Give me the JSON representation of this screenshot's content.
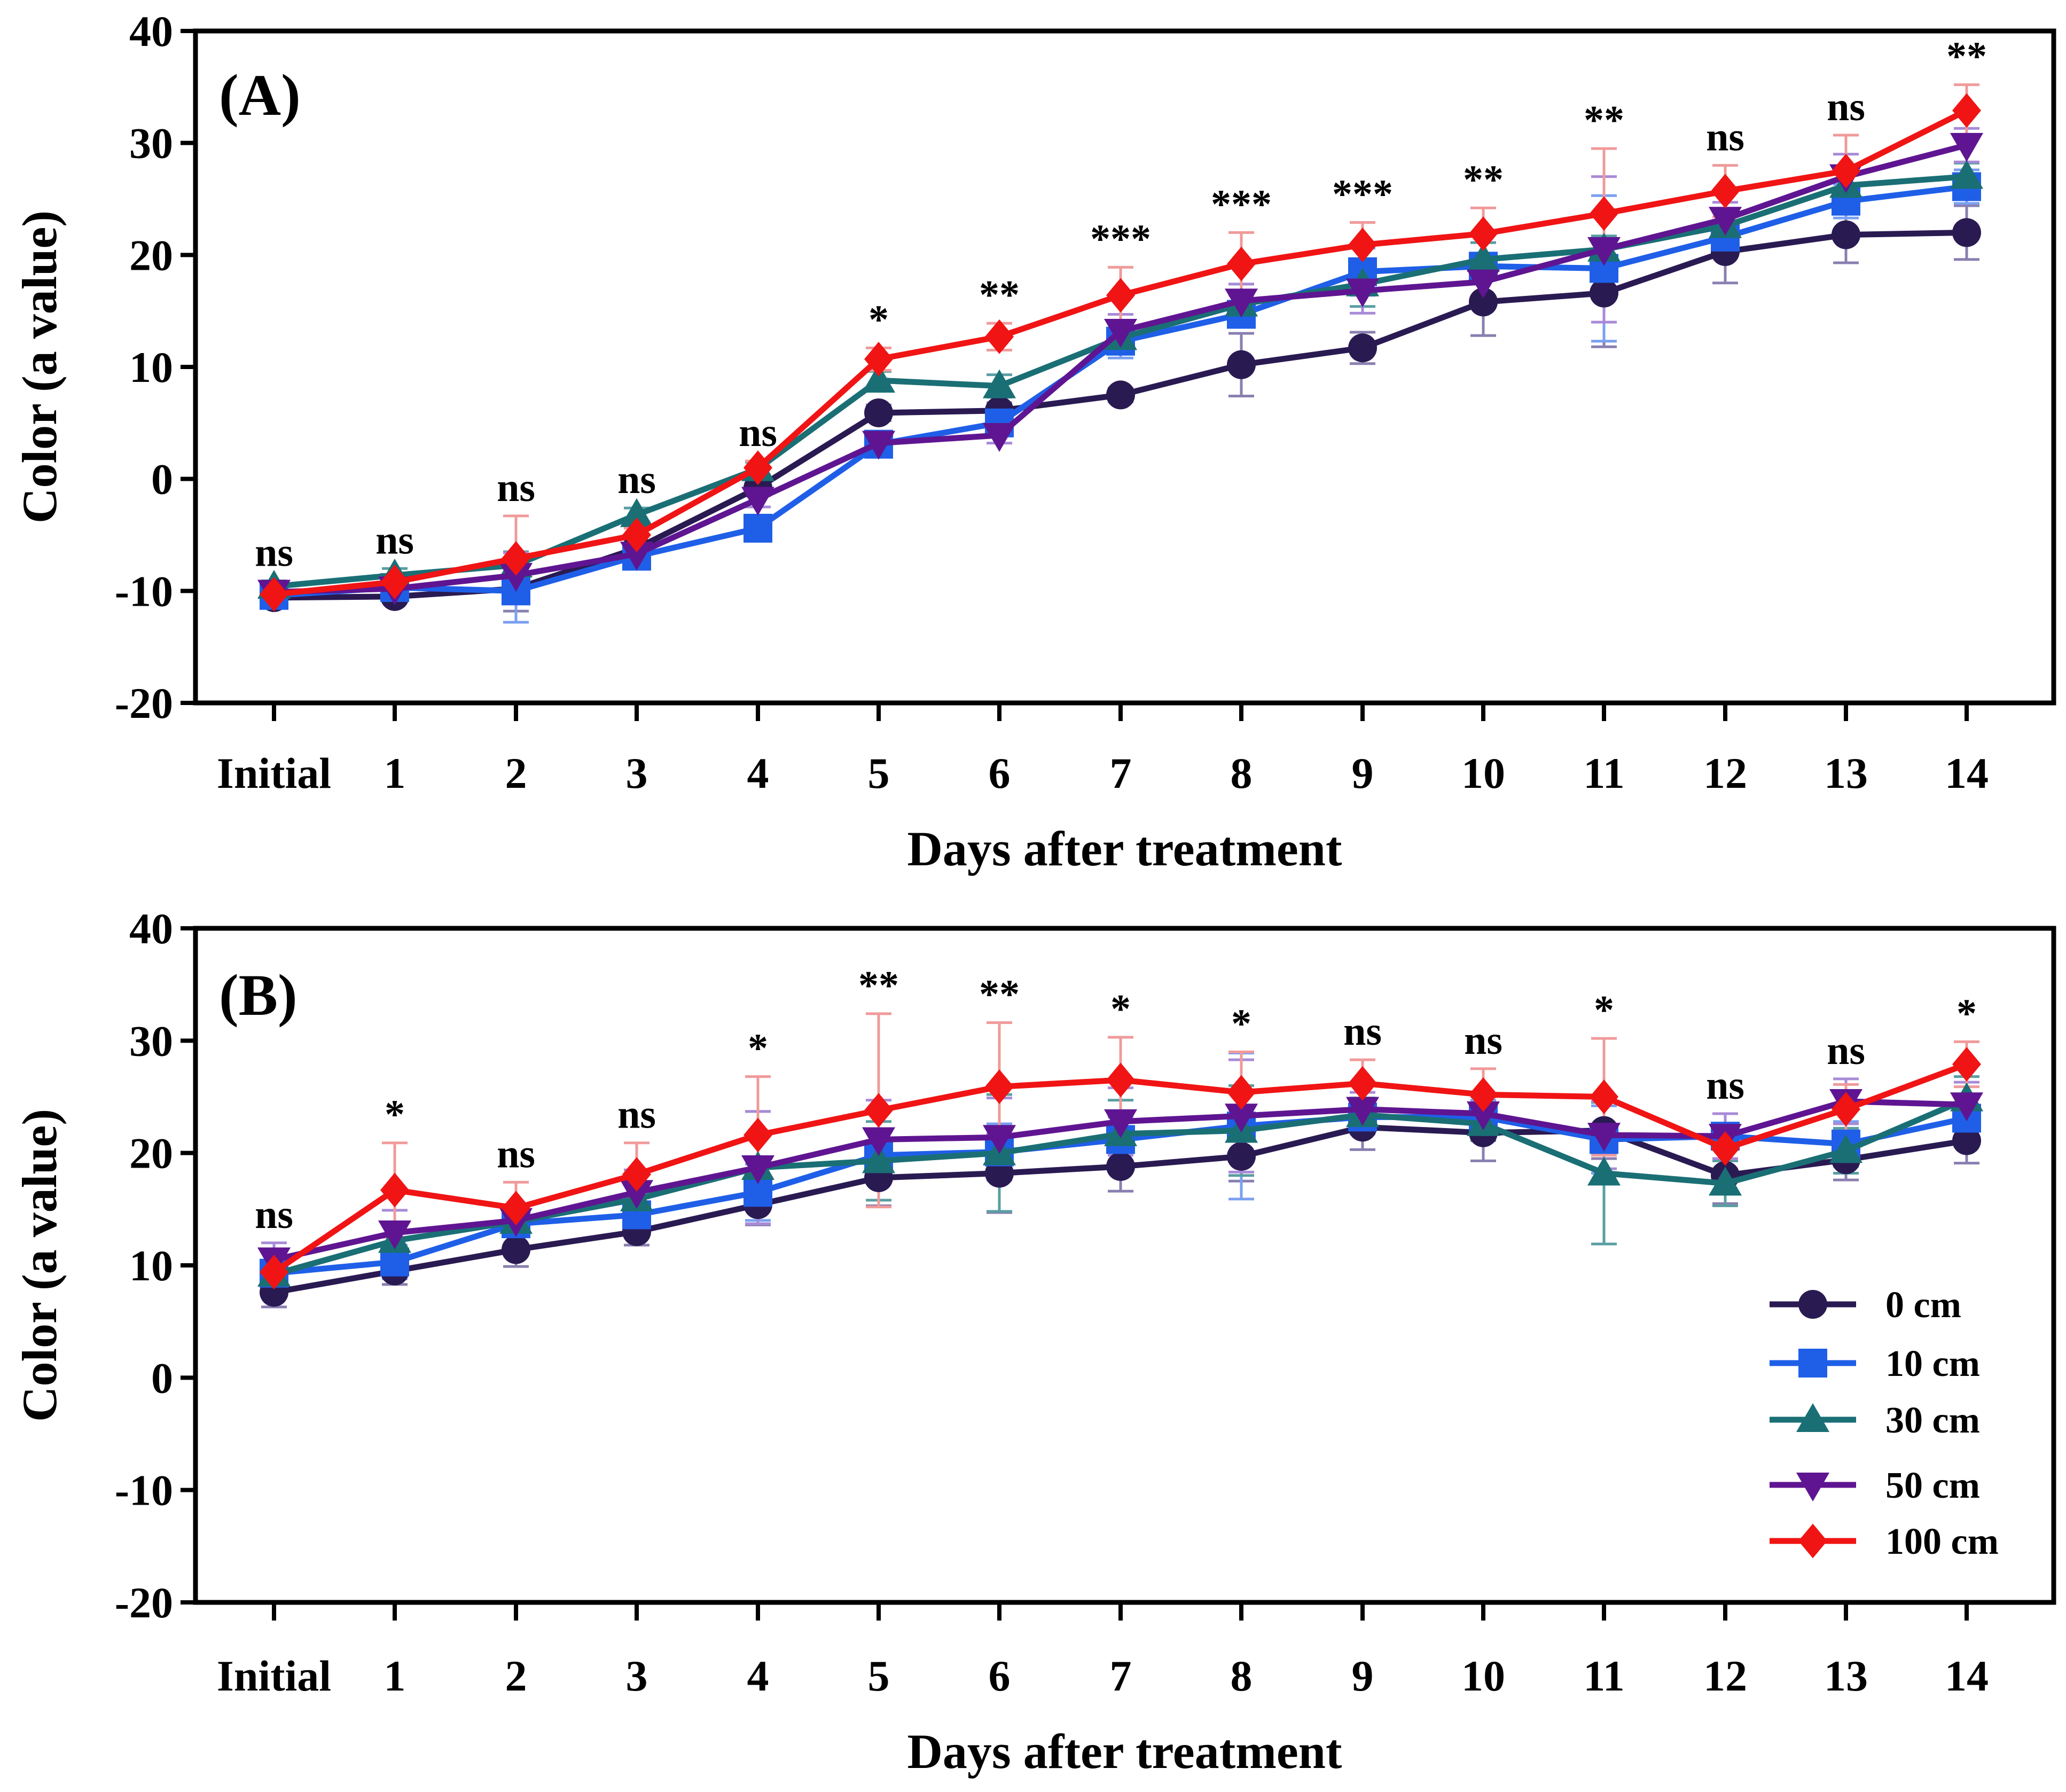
{
  "chart_data": [
    {
      "type": "line",
      "panel_label": "(A)",
      "xlabel": "Days after treatment",
      "ylabel": "Color (a value)",
      "ylim": [
        -20,
        40
      ],
      "yticks": [
        -20,
        -10,
        0,
        10,
        20,
        30,
        40
      ],
      "categories": [
        "Initial",
        "1",
        "2",
        "3",
        "4",
        "5",
        "6",
        "7",
        "8",
        "9",
        "10",
        "11",
        "12",
        "13",
        "14"
      ],
      "significance": [
        "ns",
        "ns",
        "ns",
        "ns",
        "ns",
        "*",
        "**",
        "***",
        "***",
        "***",
        "**",
        "**",
        "ns",
        "ns",
        "**"
      ],
      "series": [
        {
          "name": "0 cm",
          "values": [
            -10.6,
            -10.5,
            -9.8,
            -6.2,
            -0.8,
            5.9,
            6.1,
            7.5,
            10.2,
            11.7,
            15.8,
            16.6,
            20.3,
            21.8,
            22.0
          ],
          "errors": [
            0.5,
            0.5,
            2.0,
            0.6,
            0.7,
            0.7,
            0.7,
            0.6,
            2.8,
            1.4,
            3.0,
            4.8,
            2.8,
            2.5,
            2.4
          ]
        },
        {
          "name": "10 cm",
          "values": [
            -10.4,
            -9.7,
            -10.0,
            -6.9,
            -4.4,
            3.1,
            5.0,
            12.3,
            14.7,
            18.5,
            19.0,
            18.8,
            21.6,
            24.8,
            26.1
          ],
          "errors": [
            0.5,
            0.5,
            2.8,
            0.6,
            0.7,
            0.8,
            1.0,
            1.5,
            1.0,
            2.1,
            1.0,
            6.5,
            1.3,
            1.5,
            1.5
          ]
        },
        {
          "name": "30 cm",
          "values": [
            -9.6,
            -8.6,
            -7.7,
            -3.2,
            0.9,
            8.8,
            8.3,
            12.6,
            15.6,
            17.4,
            19.6,
            20.5,
            22.6,
            26.2,
            27.0
          ],
          "errors": [
            0.5,
            0.6,
            1.2,
            0.6,
            0.6,
            0.8,
            1.0,
            1.2,
            1.8,
            2.0,
            1.5,
            1.2,
            1.2,
            1.5,
            1.2
          ]
        },
        {
          "name": "50 cm",
          "values": [
            -10.1,
            -9.8,
            -8.6,
            -6.7,
            -1.8,
            3.2,
            3.9,
            13.2,
            15.9,
            16.8,
            17.6,
            20.5,
            23.2,
            27.0,
            29.8
          ],
          "errors": [
            0.5,
            0.5,
            2.0,
            0.8,
            0.7,
            0.7,
            0.7,
            1.5,
            1.5,
            2.0,
            1.8,
            6.5,
            1.5,
            2.0,
            1.5
          ]
        },
        {
          "name": "100 cm",
          "values": [
            -10.3,
            -9.2,
            -7.1,
            -5.0,
            1.0,
            10.7,
            12.7,
            16.4,
            19.2,
            20.9,
            21.9,
            23.7,
            25.7,
            27.5,
            32.9
          ],
          "errors": [
            0.5,
            0.5,
            3.8,
            0.6,
            0.6,
            1.0,
            1.2,
            2.5,
            2.8,
            2.0,
            2.3,
            5.8,
            2.3,
            3.2,
            2.3
          ]
        }
      ],
      "colors": {
        "0 cm": "#2a1a52",
        "10 cm": "#1f5fe8",
        "30 cm": "#1a6f75",
        "50 cm": "#5f1591",
        "100 cm": "#f01414"
      },
      "error_colors": {
        "0 cm": "#8a7fb0",
        "10 cm": "#7aa0f0",
        "30 cm": "#5a9ea2",
        "50 cm": "#a98ad8",
        "100 cm": "#f09a9a"
      }
    },
    {
      "type": "line",
      "panel_label": "(B)",
      "xlabel": "Days after treatment",
      "ylabel": "Color (a value)",
      "ylim": [
        -20,
        40
      ],
      "yticks": [
        -20,
        -10,
        0,
        10,
        20,
        30,
        40
      ],
      "categories": [
        "Initial",
        "1",
        "2",
        "3",
        "4",
        "5",
        "6",
        "7",
        "8",
        "9",
        "10",
        "11",
        "12",
        "13",
        "14"
      ],
      "significance": [
        "ns",
        "*",
        "ns",
        "ns",
        "*",
        "**",
        "**",
        "*",
        "*",
        "ns",
        "ns",
        "*",
        "ns",
        "ns",
        "*"
      ],
      "series": [
        {
          "name": "0 cm",
          "values": [
            7.6,
            9.5,
            11.4,
            13.0,
            15.4,
            17.8,
            18.2,
            18.8,
            19.7,
            22.3,
            21.8,
            22.0,
            18.0,
            19.4,
            21.1
          ],
          "errors": [
            1.3,
            1.2,
            1.5,
            1.2,
            1.8,
            2.5,
            3.5,
            2.2,
            2.2,
            2.0,
            2.5,
            2.5,
            2.5,
            1.8,
            2.0
          ]
        },
        {
          "name": "10 cm",
          "values": [
            9.3,
            10.3,
            13.7,
            14.5,
            16.5,
            19.8,
            20.1,
            21.2,
            22.4,
            23.2,
            23.2,
            21.2,
            21.5,
            20.8,
            23.1
          ],
          "errors": [
            1.0,
            1.5,
            1.0,
            1.5,
            2.5,
            4.0,
            2.5,
            2.0,
            6.5,
            1.5,
            1.5,
            3.0,
            2.0,
            2.0,
            2.0
          ]
        },
        {
          "name": "30 cm",
          "values": [
            9.2,
            12.2,
            13.9,
            15.9,
            18.7,
            19.3,
            20.0,
            21.7,
            22.0,
            23.4,
            22.6,
            18.2,
            17.3,
            20.2,
            24.8
          ],
          "errors": [
            1.0,
            1.5,
            1.0,
            1.5,
            5.0,
            3.5,
            5.2,
            3.0,
            4.0,
            1.5,
            1.5,
            6.3,
            2.0,
            2.0,
            2.0
          ]
        },
        {
          "name": "50 cm",
          "values": [
            10.5,
            12.9,
            14.0,
            16.5,
            18.7,
            21.2,
            21.4,
            22.8,
            23.3,
            23.9,
            23.5,
            21.6,
            21.5,
            24.6,
            24.3
          ],
          "errors": [
            1.5,
            2.0,
            1.0,
            2.0,
            5.0,
            3.5,
            3.5,
            3.0,
            5.0,
            1.5,
            1.5,
            3.0,
            2.0,
            2.0,
            2.0
          ]
        },
        {
          "name": "100 cm",
          "values": [
            9.4,
            16.7,
            15.1,
            18.1,
            21.6,
            23.8,
            25.9,
            26.5,
            25.4,
            26.2,
            25.2,
            25.0,
            20.4,
            23.9,
            27.9
          ],
          "errors": [
            1.0,
            4.2,
            2.3,
            2.8,
            5.2,
            8.6,
            5.7,
            3.8,
            3.6,
            2.1,
            2.3,
            5.2,
            1.8,
            2.2,
            2.0
          ]
        }
      ],
      "colors": {
        "0 cm": "#2a1a52",
        "10 cm": "#1f5fe8",
        "30 cm": "#1a6f75",
        "50 cm": "#5f1591",
        "100 cm": "#f01414"
      },
      "error_colors": {
        "0 cm": "#8a7fb0",
        "10 cm": "#7aa0f0",
        "30 cm": "#5a9ea2",
        "50 cm": "#a98ad8",
        "100 cm": "#f09a9a"
      },
      "legend": {
        "placement": "lower-right",
        "entries": [
          {
            "label": "0 cm",
            "marker": "circle"
          },
          {
            "label": "10 cm",
            "marker": "square"
          },
          {
            "label": "30 cm",
            "marker": "triangle-up"
          },
          {
            "label": "50 cm",
            "marker": "triangle-down"
          },
          {
            "label": "100 cm",
            "marker": "diamond"
          }
        ]
      }
    }
  ]
}
